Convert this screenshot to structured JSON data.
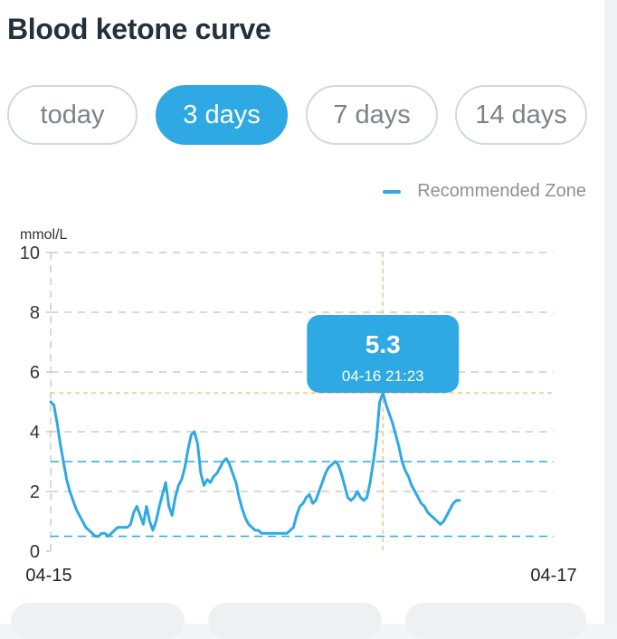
{
  "title": "Blood ketone curve",
  "tabs": [
    {
      "label": "today",
      "active": false
    },
    {
      "label": "3 days",
      "active": true
    },
    {
      "label": "7 days",
      "active": false
    },
    {
      "label": "14 days",
      "active": false
    }
  ],
  "legend": {
    "label": "Recommended Zone",
    "color": "#2ea9e4"
  },
  "tooltip": {
    "value": "5.3",
    "time": "04-16 21:23"
  },
  "colors": {
    "accent": "#2ea9e4",
    "crosshair": "#f0c48a",
    "grid": "#c8ccd0",
    "text": "#24303a"
  },
  "chart_data": {
    "type": "line",
    "unit_label": "mmol/L",
    "ylim": [
      0,
      10
    ],
    "y_ticks": [
      0,
      2,
      4,
      6,
      8,
      10
    ],
    "x_tick_labels": [
      "04-15",
      "04-17"
    ],
    "recommended_zone": [
      0.5,
      3
    ],
    "highlight": {
      "time": "04-16 21:23",
      "value": 5.3
    },
    "series": [
      {
        "values": [
          5.0,
          4.9,
          4.3,
          3.6,
          3.0,
          2.4,
          2.0,
          1.7,
          1.4,
          1.2,
          1.0,
          0.8,
          0.7,
          0.6,
          0.5,
          0.5,
          0.6,
          0.6,
          0.5,
          0.6,
          0.7,
          0.8,
          0.8,
          0.8,
          0.8,
          0.9,
          1.3,
          1.5,
          1.2,
          0.9,
          1.5,
          1.0,
          0.7,
          1.0,
          1.5,
          1.9,
          2.3,
          1.5,
          1.2,
          1.8,
          2.2,
          2.4,
          2.8,
          3.4,
          3.9,
          4.0,
          3.6,
          2.6,
          2.2,
          2.4,
          2.3,
          2.5,
          2.6,
          2.8,
          3.0,
          3.1,
          2.9,
          2.6,
          2.3,
          1.8,
          1.4,
          1.1,
          0.9,
          0.8,
          0.7,
          0.7,
          0.6,
          0.6,
          0.6,
          0.6,
          0.6,
          0.6,
          0.6,
          0.6,
          0.6,
          0.7,
          0.8,
          1.2,
          1.5,
          1.6,
          1.8,
          1.9,
          1.6,
          1.7,
          2.0,
          2.3,
          2.6,
          2.8,
          2.9,
          3.0,
          2.9,
          2.6,
          2.2,
          1.8,
          1.7,
          1.8,
          2.0,
          1.8,
          1.7,
          1.8,
          2.3,
          3.0,
          3.8,
          5.0,
          5.3,
          4.9,
          4.6,
          4.3,
          3.9,
          3.5,
          3.0,
          2.7,
          2.5,
          2.2,
          2.0,
          1.8,
          1.6,
          1.5,
          1.3,
          1.2,
          1.1,
          1.0,
          0.9,
          1.0,
          1.2,
          1.4,
          1.6,
          1.7,
          1.7
        ]
      }
    ]
  }
}
